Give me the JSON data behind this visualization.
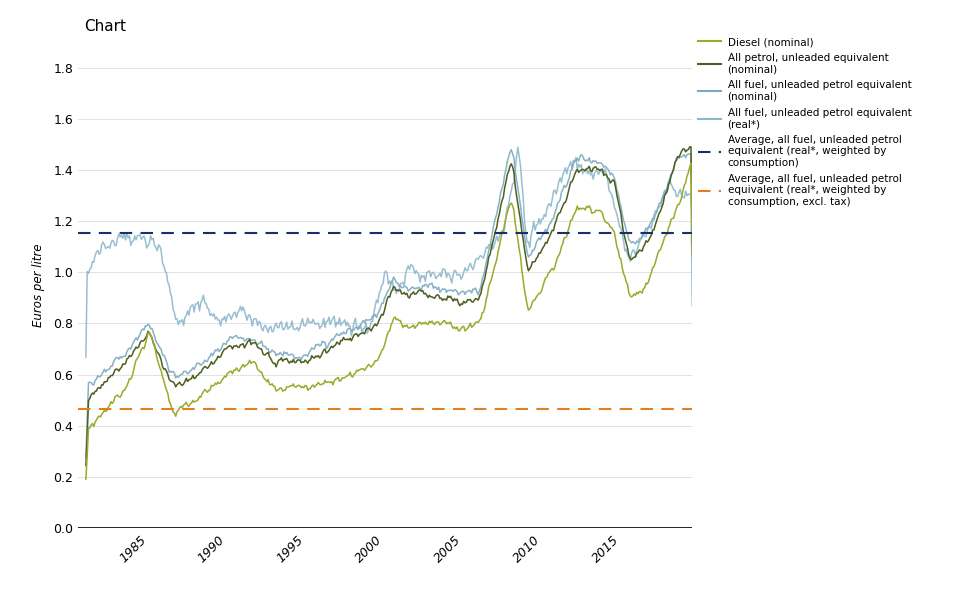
{
  "title": "Chart",
  "ylabel": "Euros per litre",
  "ylim": [
    0,
    1.9
  ],
  "yticks": [
    0,
    0.2,
    0.4,
    0.6,
    0.8,
    1.0,
    1.2,
    1.4,
    1.6,
    1.8
  ],
  "xlim": [
    1980.5,
    2019.5
  ],
  "xticks": [
    1985,
    1990,
    1995,
    2000,
    2005,
    2010,
    2015
  ],
  "avg_real_weighted": 1.155,
  "avg_real_weighted_excl_tax": 0.465,
  "colors": {
    "diesel_nominal": "#9aaa2b",
    "all_petrol_nominal": "#4d5e1e",
    "all_fuel_nominal": "#7aaabf",
    "all_fuel_real": "#8db8cc",
    "avg_real_dashed": "#1a2e6e",
    "avg_real_excl_tax_dashed": "#e08020"
  },
  "legend_labels": [
    "Diesel (nominal)",
    "All petrol, unleaded equivalent\n(nominal)",
    "All fuel, unleaded petrol equivalent\n(nominal)",
    "All fuel, unleaded petrol equivalent\n(real*)",
    "Average, all fuel, unleaded petrol\nequivalent (real*, weighted by\nconsumption)",
    "Average, all fuel, unleaded petrol\nequivalent (real*, weighted by\nconsumption, excl. tax)"
  ],
  "figsize": [
    9.75,
    6.0
  ],
  "dpi": 100
}
